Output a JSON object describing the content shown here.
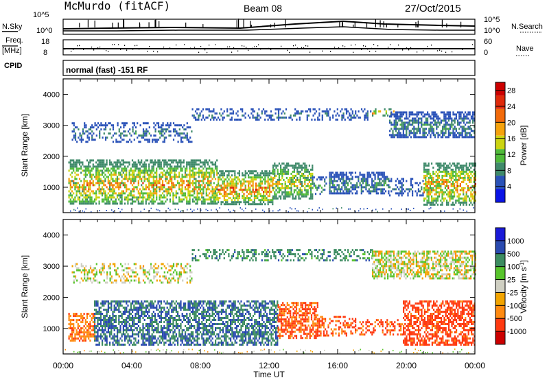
{
  "header": {
    "station": "McMurdo (fitACF)",
    "beam": "Beam 08",
    "date": "27/Oct/2015"
  },
  "top_labels": {
    "nsky": "N.Sky",
    "nsearch": "N.Search",
    "freq": "Freq.",
    "mhz": "[MHz]",
    "nave": "Nave",
    "cpid": "CPID",
    "cpid_value": "normal (fast) -151 RF",
    "noise_ticks": [
      "10^5",
      "10^0"
    ],
    "freq_ticks": [
      "18",
      "8"
    ],
    "nave_ticks": [
      "60",
      "0"
    ]
  },
  "colors": {
    "power": [
      "#0a14e6",
      "#2a52b8",
      "#3f8a6a",
      "#50bb3a",
      "#ccd411",
      "#f5a20c",
      "#f26a0a",
      "#e02a0a",
      "#cc0000"
    ],
    "velocity": [
      "#cc0000",
      "#ff3a10",
      "#ff8a10",
      "#f2a400",
      "#cfcfc2",
      "#58c42c",
      "#3c8c60",
      "#2a4ab0",
      "#1a1ad8"
    ]
  },
  "chart_data": [
    {
      "type": "heatmap",
      "panel": "power",
      "xlabel": "Time UT",
      "ylabel": "Slant Range [km]",
      "xlim": [
        "00:00",
        "24:00"
      ],
      "ylim": [
        180,
        4500
      ],
      "x_ticks": [
        "00:00",
        "04:00",
        "08:00",
        "12:00",
        "16:00",
        "20:00",
        "00:00"
      ],
      "y_ticks": [
        "1000",
        "2000",
        "3000",
        "4000"
      ],
      "colorbar_label": "Power [dB]",
      "colorbar_ticks": [
        "4",
        "8",
        "12",
        "16",
        "20",
        "24",
        "28"
      ],
      "colorbar_range": [
        0,
        30
      ],
      "regions": [
        {
          "t": [
            0.3,
            9.0
          ],
          "r": [
            450,
            1900
          ],
          "peak": 24
        },
        {
          "t": [
            9.0,
            12.2
          ],
          "r": [
            480,
            1550
          ],
          "peak": 27
        },
        {
          "t": [
            12.2,
            14.5
          ],
          "r": [
            650,
            1800
          ],
          "peak": 20
        },
        {
          "t": [
            14.5,
            15.3
          ],
          "r": [
            800,
            1350
          ],
          "peak": 12
        },
        {
          "t": [
            15.5,
            19.0
          ],
          "r": [
            800,
            1500
          ],
          "peak": 10
        },
        {
          "t": [
            19.0,
            21.0
          ],
          "r": [
            750,
            1300
          ],
          "peak": 8
        },
        {
          "t": [
            21.0,
            24.0
          ],
          "r": [
            450,
            1800
          ],
          "peak": 26
        },
        {
          "t": [
            0.5,
            7.5
          ],
          "r": [
            2500,
            3100
          ],
          "peak": 9
        },
        {
          "t": [
            7.5,
            18.0
          ],
          "r": [
            3200,
            3550
          ],
          "peak": 8
        },
        {
          "t": [
            18.0,
            19.5
          ],
          "r": [
            3350,
            3550
          ],
          "peak": 25
        },
        {
          "t": [
            19.0,
            24.0
          ],
          "r": [
            2600,
            3450
          ],
          "peak": 10
        }
      ]
    },
    {
      "type": "heatmap",
      "panel": "velocity",
      "xlabel": "Time UT",
      "ylabel": "Slant Range [km]",
      "xlim": [
        "00:00",
        "24:00"
      ],
      "ylim": [
        180,
        4500
      ],
      "x_ticks": [
        "00:00",
        "04:00",
        "08:00",
        "12:00",
        "16:00",
        "20:00",
        "00:00"
      ],
      "y_ticks": [
        "1000",
        "2000",
        "3000",
        "4000"
      ],
      "colorbar_label": "Velocity [m s^-1]",
      "colorbar_ticks": [
        "1000",
        "500",
        "100",
        "25",
        "-25",
        "-100",
        "-500",
        "-1000"
      ],
      "colorbar_range": [
        -1000,
        1000
      ],
      "regions": [
        {
          "t": [
            0.3,
            1.8
          ],
          "r": [
            600,
            1500
          ],
          "v": -250
        },
        {
          "t": [
            1.8,
            12.5
          ],
          "r": [
            450,
            1900
          ],
          "v": 300
        },
        {
          "t": [
            12.5,
            14.8
          ],
          "r": [
            700,
            1850
          ],
          "v": -350
        },
        {
          "t": [
            14.8,
            17.0
          ],
          "r": [
            800,
            1400
          ],
          "v": -300
        },
        {
          "t": [
            17.0,
            19.8
          ],
          "r": [
            800,
            1300
          ],
          "v": -350
        },
        {
          "t": [
            19.8,
            24.0
          ],
          "r": [
            450,
            1900
          ],
          "v": -400
        },
        {
          "t": [
            0.5,
            7.5
          ],
          "r": [
            2500,
            3100
          ],
          "v": 0
        },
        {
          "t": [
            7.5,
            18.0
          ],
          "r": [
            3200,
            3550
          ],
          "v": 200
        },
        {
          "t": [
            18.0,
            24.0
          ],
          "r": [
            2600,
            3500
          ],
          "v": 0
        }
      ]
    }
  ]
}
